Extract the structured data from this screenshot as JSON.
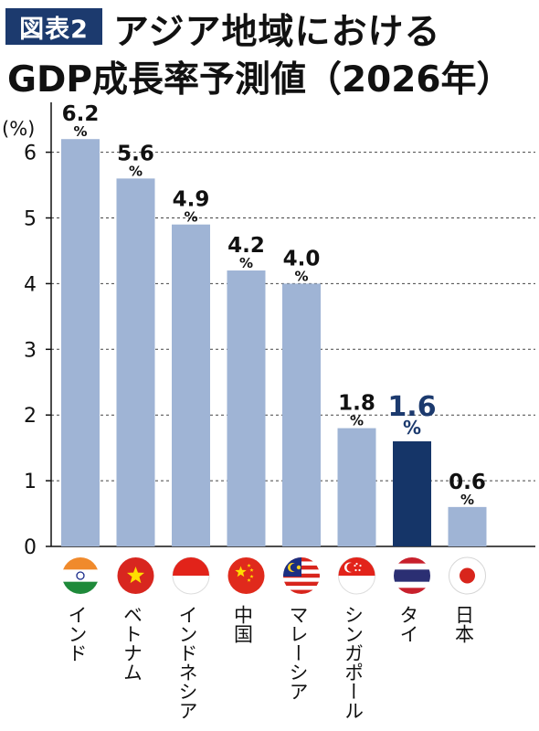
{
  "header": {
    "badge": "図表2",
    "title_line1": "アジア地域における",
    "title_line2": "GDP成長率予測値（2026年）"
  },
  "chart_data": {
    "type": "bar",
    "ylabel": "(%)",
    "ylim": [
      0,
      6.4
    ],
    "yticks": [
      0,
      1,
      2,
      3,
      4,
      5,
      6
    ],
    "grid": true,
    "categories": [
      "インド",
      "ベトナム",
      "インドネシア",
      "中国",
      "マレーシア",
      "シンガポール",
      "タイ",
      "日本"
    ],
    "values": [
      6.2,
      5.6,
      4.9,
      4.2,
      4.0,
      1.8,
      1.6,
      0.6
    ],
    "value_labels": [
      "6.2",
      "5.6",
      "4.9",
      "4.2",
      "4.0",
      "1.8",
      "1.6",
      "0.6"
    ],
    "unit_label": "%",
    "highlight_index": 6,
    "colors": {
      "bar": "#9fb4d5",
      "highlight_bar": "#153568",
      "highlight_label": "#1c3a6e",
      "label": "#111111",
      "grid": "#444444"
    },
    "flags": [
      "india-flag-icon",
      "vietnam-flag-icon",
      "indonesia-flag-icon",
      "china-flag-icon",
      "malaysia-flag-icon",
      "singapore-flag-icon",
      "thailand-flag-icon",
      "japan-flag-icon"
    ]
  }
}
